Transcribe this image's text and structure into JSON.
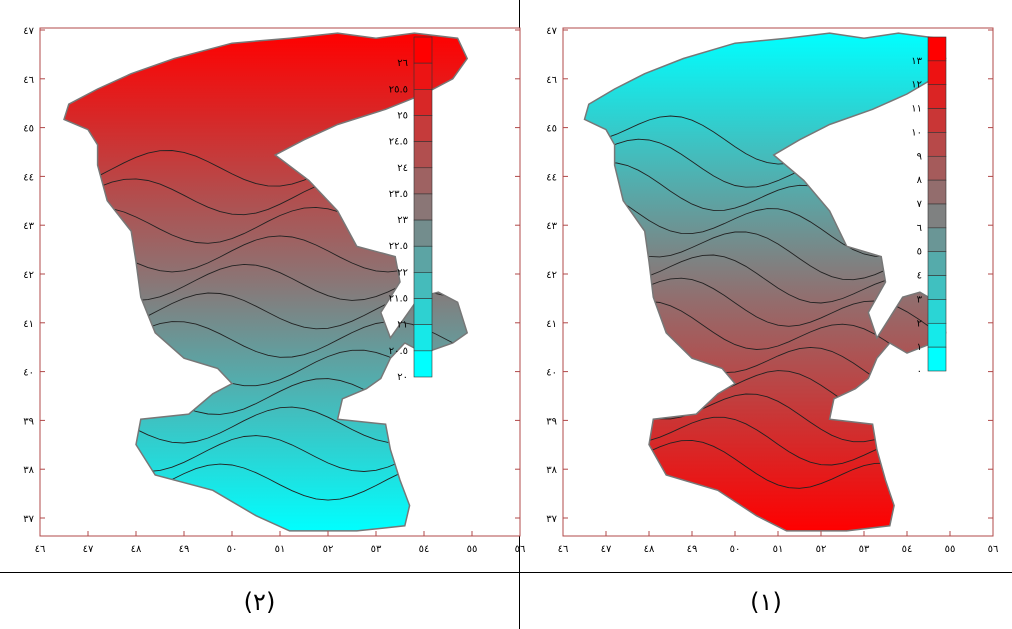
{
  "maps": [
    {
      "caption": "(٢)",
      "y_ticks": [
        "٤٧",
        "٤٦",
        "٤٥",
        "٤٤",
        "٤٣",
        "٤٢",
        "٤١",
        "٤٠",
        "٣٩",
        "٣٨",
        "٣٧"
      ],
      "x_ticks": [
        "٤٦",
        "٤٧",
        "٤٨",
        "٤٩",
        "٥٠",
        "٥١",
        "٥٢",
        "٥٣",
        "٥٤",
        "٥٥",
        "٥٦"
      ],
      "legend": [
        "٢٦",
        "٢٥.٥",
        "٢٥",
        "٢٤.٥",
        "٢٤",
        "٢٣.٥",
        "٢٣",
        "٢٢.٥",
        "٢٢",
        "٢١.٥",
        "٢١",
        "٢٠.٥",
        "٢٠"
      ],
      "legend_top_color": "#ff0000",
      "legend_bottom_color": "#00ffff"
    },
    {
      "caption": "(١)",
      "y_ticks": [
        "٤٧",
        "٤٦",
        "٤٥",
        "٤٤",
        "٤٣",
        "٤٢",
        "٤١",
        "٤٠",
        "٣٩",
        "٣٨",
        "٣٧"
      ],
      "x_ticks": [
        "٤٦",
        "٤٧",
        "٤٨",
        "٤٩",
        "٥٠",
        "٥١",
        "٥٢",
        "٥٣",
        "٥٤",
        "٥٥",
        "٥٦"
      ],
      "legend": [
        "١٣",
        "١٢",
        "١١",
        "١٠",
        "٩",
        "٨",
        "٧",
        "٦",
        "٥",
        "٤",
        "٣",
        "٢",
        "١",
        "٠"
      ],
      "legend_top_color": "#ff0000",
      "legend_bottom_color": "#00ffff"
    }
  ]
}
